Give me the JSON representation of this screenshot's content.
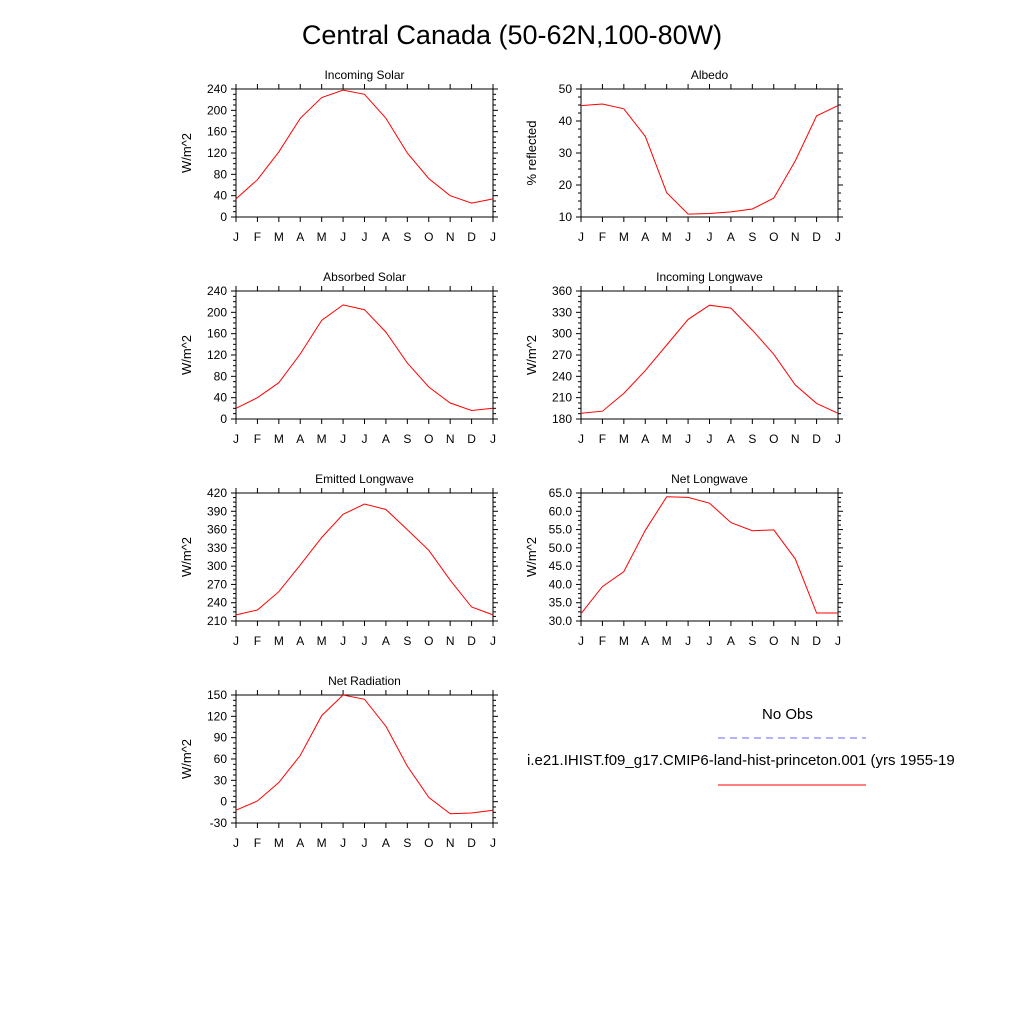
{
  "page": {
    "title": "Central Canada (50-62N,100-80W)"
  },
  "legend": {
    "obs_label": "No Obs",
    "obs_color": "#6666ff",
    "model_label": "i.e21.IHIST.f09_g17.CMIP6-land-hist-princeton.001 (yrs 1955-19",
    "model_color": "#ff0000"
  },
  "chart_data": [
    {
      "type": "line",
      "title": "Incoming Solar",
      "ylabel": "W/m^2",
      "ylim": [
        0,
        240
      ],
      "yticks": [
        "0",
        "40",
        "80",
        "120",
        "160",
        "200",
        "240"
      ],
      "categories": [
        "J",
        "F",
        "M",
        "A",
        "M",
        "J",
        "J",
        "A",
        "S",
        "O",
        "N",
        "D",
        "J"
      ],
      "series": [
        {
          "color": "#ff0000",
          "values": [
            34,
            70,
            122,
            185,
            224,
            238,
            230,
            185,
            120,
            72,
            40,
            26,
            34
          ]
        }
      ]
    },
    {
      "type": "line",
      "title": "Albedo",
      "ylabel": "% reflected",
      "ylim": [
        10,
        50
      ],
      "yticks": [
        "10",
        "20",
        "30",
        "40",
        "50"
      ],
      "categories": [
        "J",
        "F",
        "M",
        "A",
        "M",
        "J",
        "J",
        "A",
        "S",
        "O",
        "N",
        "D",
        "J"
      ],
      "series": [
        {
          "color": "#ff0000",
          "values": [
            44.8,
            45.3,
            43.8,
            35.2,
            17.6,
            10.9,
            11.1,
            11.6,
            12.5,
            15.9,
            27.5,
            41.6,
            44.8
          ]
        }
      ]
    },
    {
      "type": "line",
      "title": "Absorbed Solar",
      "ylabel": "W/m^2",
      "ylim": [
        0,
        240
      ],
      "yticks": [
        "0",
        "40",
        "80",
        "120",
        "160",
        "200",
        "240"
      ],
      "categories": [
        "J",
        "F",
        "M",
        "A",
        "M",
        "J",
        "J",
        "A",
        "S",
        "O",
        "N",
        "D",
        "J"
      ],
      "series": [
        {
          "color": "#ff0000",
          "values": [
            20,
            40,
            68,
            122,
            185,
            214,
            205,
            163,
            105,
            60,
            30,
            16,
            20
          ]
        }
      ]
    },
    {
      "type": "line",
      "title": "Incoming Longwave",
      "ylabel": "W/m^2",
      "ylim": [
        180,
        360
      ],
      "yticks": [
        "180",
        "210",
        "240",
        "270",
        "300",
        "330",
        "360"
      ],
      "categories": [
        "J",
        "F",
        "M",
        "A",
        "M",
        "J",
        "J",
        "A",
        "S",
        "O",
        "N",
        "D",
        "J"
      ],
      "series": [
        {
          "color": "#ff0000",
          "values": [
            188,
            191,
            216,
            248,
            284,
            320,
            340,
            336,
            305,
            271,
            228,
            202,
            188
          ]
        }
      ]
    },
    {
      "type": "line",
      "title": "Emitted Longwave",
      "ylabel": "W/m^2",
      "ylim": [
        210,
        420
      ],
      "yticks": [
        "210",
        "240",
        "270",
        "300",
        "330",
        "360",
        "390",
        "420"
      ],
      "categories": [
        "J",
        "F",
        "M",
        "A",
        "M",
        "J",
        "J",
        "A",
        "S",
        "O",
        "N",
        "D",
        "J"
      ],
      "series": [
        {
          "color": "#ff0000",
          "values": [
            220,
            228,
            258,
            302,
            347,
            385,
            402,
            393,
            360,
            326,
            277,
            233,
            220
          ]
        }
      ]
    },
    {
      "type": "line",
      "title": "Net Longwave",
      "ylabel": "W/m^2",
      "ylim": [
        30,
        65
      ],
      "yticks": [
        "30.0",
        "35.0",
        "40.0",
        "45.0",
        "50.0",
        "55.0",
        "60.0",
        "65.0"
      ],
      "categories": [
        "J",
        "F",
        "M",
        "A",
        "M",
        "J",
        "J",
        "A",
        "S",
        "O",
        "N",
        "D",
        "J"
      ],
      "series": [
        {
          "color": "#ff0000",
          "values": [
            32.0,
            39.4,
            43.5,
            54.8,
            64.0,
            63.8,
            62.2,
            56.9,
            54.7,
            54.9,
            47.0,
            32.2,
            32.2
          ]
        }
      ]
    },
    {
      "type": "line",
      "title": "Net Radiation",
      "ylabel": "W/m^2",
      "ylim": [
        -30,
        150
      ],
      "yticks": [
        "-30",
        "0",
        "30",
        "60",
        "90",
        "120",
        "150"
      ],
      "categories": [
        "J",
        "F",
        "M",
        "A",
        "M",
        "J",
        "J",
        "A",
        "S",
        "O",
        "N",
        "D",
        "J"
      ],
      "series": [
        {
          "color": "#ff0000",
          "values": [
            -12,
            1,
            27,
            65,
            121,
            150,
            144,
            106,
            50,
            6,
            -17,
            -16,
            -12
          ]
        }
      ]
    }
  ]
}
